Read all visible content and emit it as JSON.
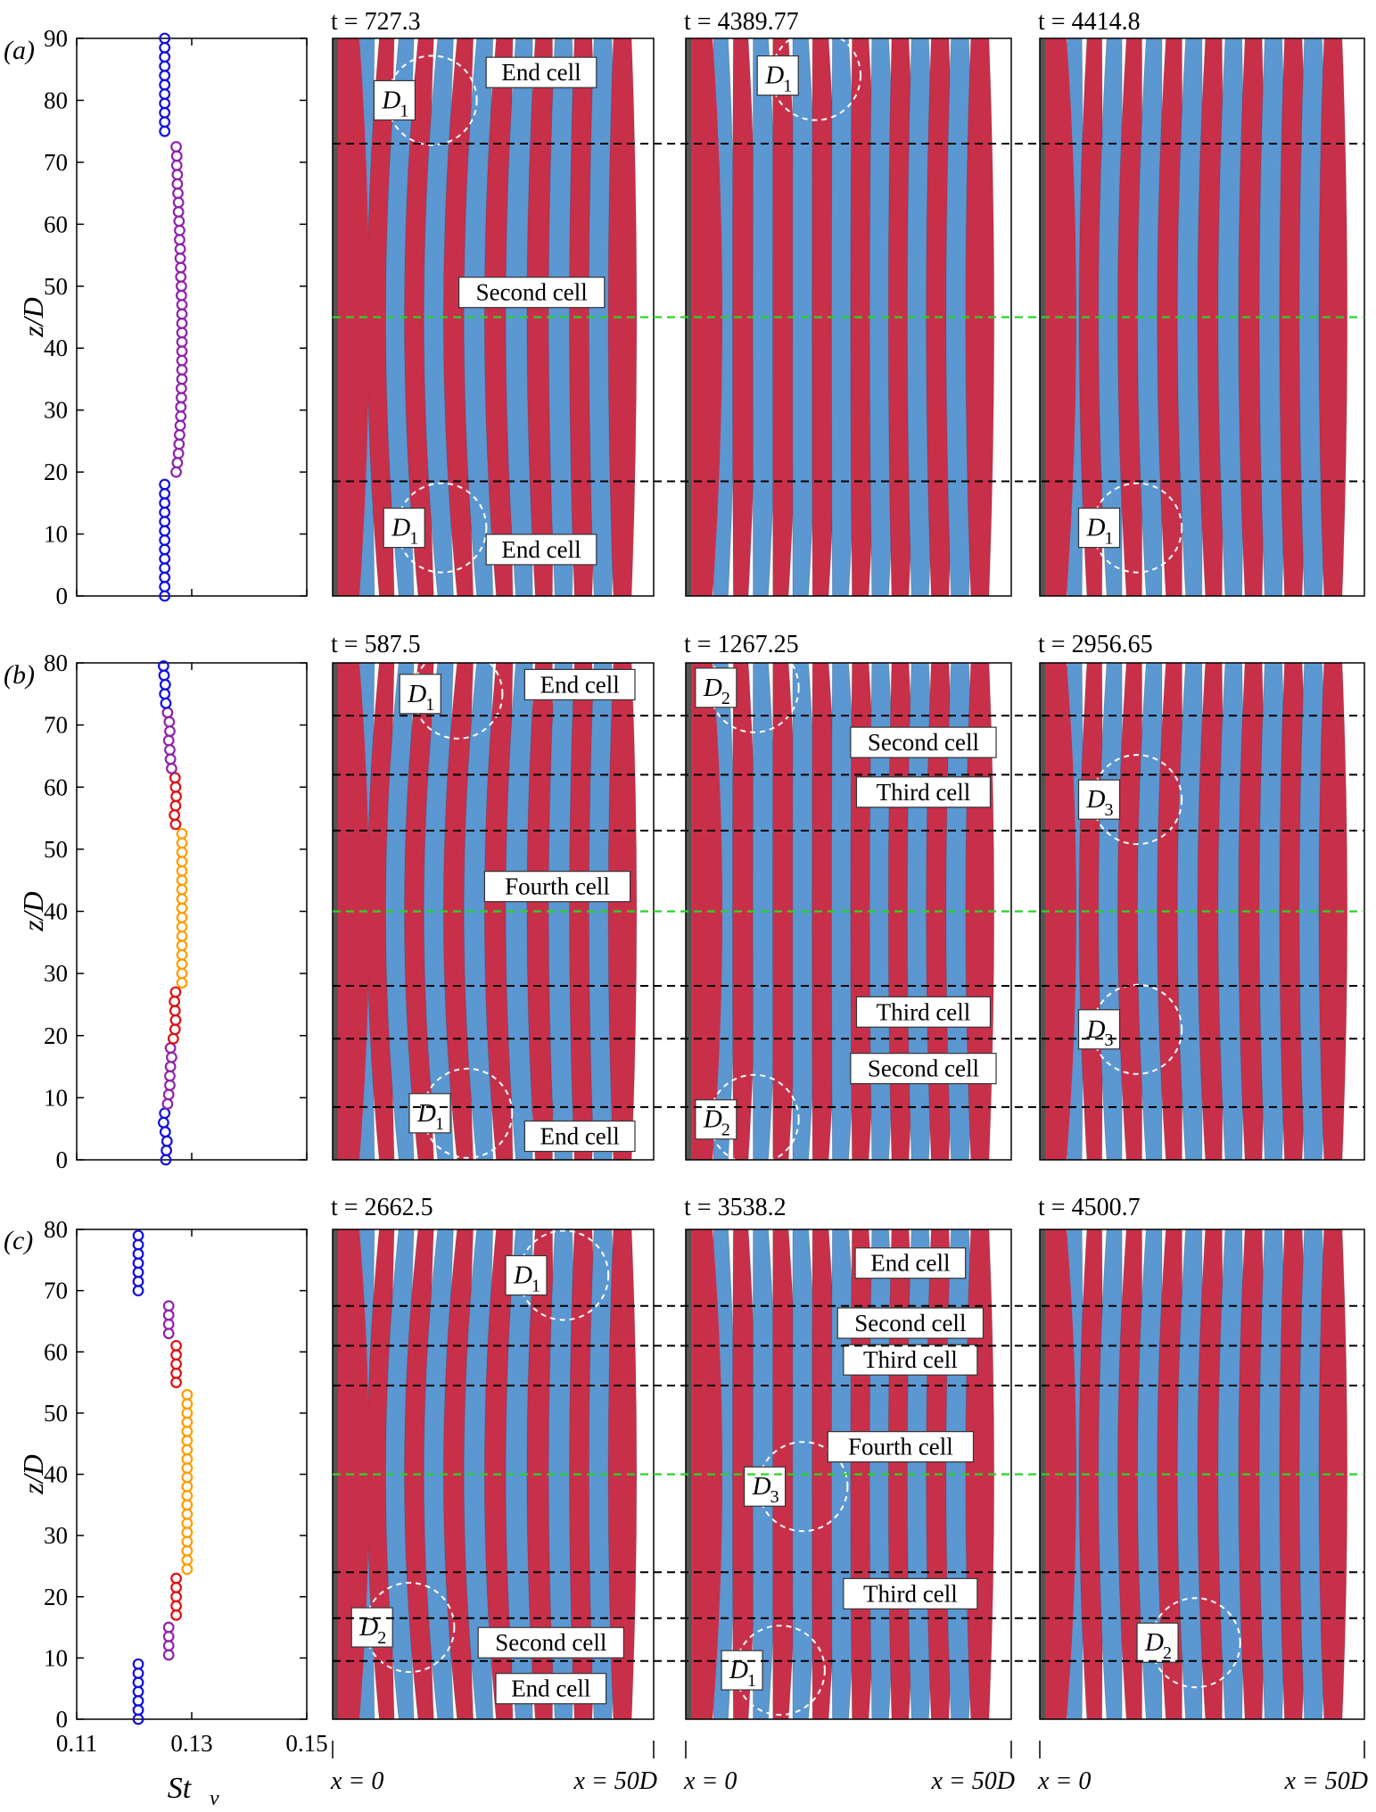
{
  "colors": {
    "red_vortex": "#c8304a",
    "blue_vortex": "#5b97d1",
    "inner_boundary": "#1f8f1f",
    "cell_boundary": "#000000",
    "st_series": [
      "#1010e0",
      "#8e24aa",
      "#e01010",
      "#ff9d00"
    ]
  },
  "common": {
    "ylabel": "z/D",
    "xlabel_st": "St",
    "xlabel_st_sub": "v",
    "x_left": "x = 0",
    "x_right": "x = 50D"
  },
  "rows": [
    {
      "label": "(a)",
      "st_chart": {
        "type": "scatter",
        "ylim": [
          0,
          90
        ],
        "yticks": [
          0,
          10,
          20,
          30,
          40,
          50,
          60,
          70,
          80,
          90
        ],
        "xlim": [
          0.11,
          0.15
        ],
        "xticks": [
          "0.11",
          "0.13",
          "0.15"
        ],
        "show_xticks": false,
        "segments": [
          {
            "color_index": 0,
            "z": [
              0,
              1.5,
              3,
              4.5,
              6,
              7.5,
              9,
              10.5,
              12,
              13.5,
              15,
              16.5,
              18
            ],
            "st": [
              0.1253,
              0.1253,
              0.1253,
              0.1253,
              0.1253,
              0.1253,
              0.1253,
              0.1253,
              0.1253,
              0.1253,
              0.1253,
              0.1253,
              0.1253
            ]
          },
          {
            "color_index": 1,
            "z": [
              20,
              21.5,
              23,
              24.5,
              26,
              27.5,
              29,
              30.5,
              32,
              33.5,
              35,
              36.5,
              38,
              39.5,
              41,
              42.5,
              44,
              45.5,
              47,
              48.5,
              50,
              51.5,
              53,
              54.5,
              56,
              57.5,
              59,
              60.5,
              62,
              63.5,
              65,
              66.5,
              68,
              69.5,
              71,
              72.5
            ],
            "st": [
              0.1273,
              0.1275,
              0.1277,
              0.1278,
              0.1279,
              0.128,
              0.1281,
              0.1281,
              0.1282,
              0.1282,
              0.1283,
              0.1283,
              0.1283,
              0.1283,
              0.1283,
              0.1283,
              0.1283,
              0.1283,
              0.1283,
              0.1282,
              0.1282,
              0.1281,
              0.1281,
              0.128,
              0.128,
              0.1279,
              0.1279,
              0.1278,
              0.1277,
              0.1277,
              0.1276,
              0.1275,
              0.1275,
              0.1274,
              0.1274,
              0.1273
            ]
          },
          {
            "color_index": 0,
            "z": [
              75,
              76.5,
              78,
              79.5,
              81,
              82.5,
              84,
              85.5,
              87,
              88.5,
              90
            ],
            "st": [
              0.1253,
              0.1253,
              0.1253,
              0.1253,
              0.1253,
              0.1253,
              0.1253,
              0.1253,
              0.1253,
              0.1253,
              0.1253
            ]
          }
        ]
      },
      "panels": [
        {
          "time": "t = 727.3",
          "labels": [
            {
              "text": "End cell",
              "x": 0.65,
              "z": 84.5
            },
            {
              "text": "Second cell",
              "x": 0.62,
              "z": 49
            },
            {
              "text": "End cell",
              "x": 0.65,
              "z": 7.5
            }
          ],
          "dlabels": [
            {
              "main": "D",
              "sub": "1",
              "x": 0.19,
              "z": 80
            },
            {
              "main": "D",
              "sub": "1",
              "x": 0.22,
              "z": 11
            }
          ]
        },
        {
          "time": "t = 4389.77",
          "labels": [],
          "dlabels": [
            {
              "main": "D",
              "sub": "1",
              "x": 0.28,
              "z": 84
            }
          ]
        },
        {
          "time": "t = 4414.8",
          "labels": [],
          "dlabels": [
            {
              "main": "D",
              "sub": "1",
              "x": 0.18,
              "z": 11
            }
          ]
        }
      ]
    },
    {
      "label": "(b)",
      "st_chart": {
        "type": "scatter",
        "ylim": [
          0,
          80
        ],
        "yticks": [
          0,
          10,
          20,
          30,
          40,
          50,
          60,
          70,
          80
        ],
        "xlim": [
          0.11,
          0.15
        ],
        "xticks": [
          "0.11",
          "0.13",
          "0.15"
        ],
        "show_xticks": false,
        "segments": [
          {
            "color_index": 0,
            "z": [
              0,
              1.5,
              3,
              4.5,
              6,
              7.5
            ],
            "st": [
              0.1255,
              0.1256,
              0.1257,
              0.1254,
              0.1251,
              0.1253
            ]
          },
          {
            "color_index": 1,
            "z": [
              9,
              10.5,
              12,
              13.5,
              15,
              16.5,
              18
            ],
            "st": [
              0.1258,
              0.126,
              0.1262,
              0.1262,
              0.1263,
              0.1265,
              0.1263
            ]
          },
          {
            "color_index": 2,
            "z": [
              19.5,
              21,
              22.5,
              24,
              25.5,
              27
            ],
            "st": [
              0.1268,
              0.1271,
              0.1272,
              0.1271,
              0.127,
              0.1272
            ]
          },
          {
            "color_index": 3,
            "z": [
              28.5,
              30,
              31.5,
              33,
              34.5,
              36,
              37.5,
              39,
              40.5,
              42,
              43.5,
              45,
              46.5,
              48,
              49.5,
              51,
              52.5
            ],
            "st": [
              0.1283,
              0.1283,
              0.1283,
              0.1283,
              0.1283,
              0.1283,
              0.1283,
              0.1283,
              0.1283,
              0.1283,
              0.1283,
              0.1283,
              0.1283,
              0.1283,
              0.1283,
              0.1283,
              0.1283
            ]
          },
          {
            "color_index": 2,
            "z": [
              54,
              55.5,
              57,
              58.5,
              60,
              61.5
            ],
            "st": [
              0.1272,
              0.127,
              0.1272,
              0.1273,
              0.1272,
              0.1271
            ]
          },
          {
            "color_index": 1,
            "z": [
              63,
              64.5,
              66,
              67.5,
              69,
              70.5,
              72
            ],
            "st": [
              0.1265,
              0.1263,
              0.1262,
              0.126,
              0.1262,
              0.1261,
              0.1258
            ]
          },
          {
            "color_index": 0,
            "z": [
              73.5,
              75,
              76.5,
              78,
              79.5
            ],
            "st": [
              0.1255,
              0.1253,
              0.1254,
              0.1252,
              0.1251
            ]
          }
        ]
      },
      "panels": [
        {
          "time": "t = 587.5",
          "labels": [
            {
              "text": "End cell",
              "x": 0.77,
              "z": 76.5
            },
            {
              "text": "Fourth cell",
              "x": 0.7,
              "z": 44
            },
            {
              "text": "End cell",
              "x": 0.77,
              "z": 3.8
            }
          ],
          "dlabels": [
            {
              "main": "D",
              "sub": "1",
              "x": 0.27,
              "z": 75
            },
            {
              "main": "D",
              "sub": "1",
              "x": 0.3,
              "z": 7.5
            }
          ]
        },
        {
          "time": "t = 1267.25",
          "labels": [
            {
              "text": "Second cell",
              "x": 0.73,
              "z": 67.2
            },
            {
              "text": "Third cell",
              "x": 0.73,
              "z": 59.2
            },
            {
              "text": "Third cell",
              "x": 0.73,
              "z": 23.8
            },
            {
              "text": "Second cell",
              "x": 0.73,
              "z": 14.7
            }
          ],
          "dlabels": [
            {
              "main": "D",
              "sub": "2",
              "x": 0.09,
              "z": 76
            },
            {
              "main": "D",
              "sub": "2",
              "x": 0.09,
              "z": 6.5
            }
          ]
        },
        {
          "time": "t = 2956.65",
          "labels": [],
          "dlabels": [
            {
              "main": "D",
              "sub": "3",
              "x": 0.18,
              "z": 58
            },
            {
              "main": "D",
              "sub": "3",
              "x": 0.18,
              "z": 21
            }
          ]
        }
      ]
    },
    {
      "label": "(c)",
      "st_chart": {
        "type": "scatter",
        "ylim": [
          0,
          80
        ],
        "yticks": [
          0,
          10,
          20,
          30,
          40,
          50,
          60,
          70,
          80
        ],
        "xlim": [
          0.11,
          0.15
        ],
        "xticks": [
          "0.11",
          "0.13",
          "0.15"
        ],
        "show_xticks": true,
        "segments": [
          {
            "color_index": 0,
            "z": [
              0,
              1.5,
              3,
              4.5,
              6,
              7.5,
              9
            ],
            "st": [
              0.1207,
              0.1207,
              0.1207,
              0.1207,
              0.1207,
              0.1207,
              0.1207
            ]
          },
          {
            "color_index": 1,
            "z": [
              10.5,
              12,
              13.5,
              15
            ],
            "st": [
              0.126,
              0.126,
              0.126,
              0.126
            ]
          },
          {
            "color_index": 2,
            "z": [
              17,
              18.5,
              20,
              21.5,
              23
            ],
            "st": [
              0.1273,
              0.1273,
              0.1273,
              0.1273,
              0.1273
            ]
          },
          {
            "color_index": 3,
            "z": [
              24.5,
              26,
              27.5,
              29,
              30.5,
              32,
              33.5,
              35,
              36.5,
              38,
              39.5,
              41,
              42.5,
              44,
              45.5,
              47,
              48.5,
              50,
              51.5,
              53
            ],
            "st": [
              0.1292,
              0.1292,
              0.1292,
              0.1292,
              0.1292,
              0.1292,
              0.1292,
              0.1292,
              0.1292,
              0.1292,
              0.1292,
              0.1292,
              0.1292,
              0.1292,
              0.1292,
              0.1292,
              0.1292,
              0.1292,
              0.1292,
              0.1292
            ]
          },
          {
            "color_index": 2,
            "z": [
              55,
              56.5,
              58,
              59.5,
              61
            ],
            "st": [
              0.1273,
              0.1273,
              0.1273,
              0.1273,
              0.1273
            ]
          },
          {
            "color_index": 1,
            "z": [
              63,
              64.5,
              66,
              67.5
            ],
            "st": [
              0.126,
              0.126,
              0.126,
              0.126
            ]
          },
          {
            "color_index": 0,
            "z": [
              70,
              71.5,
              73,
              74.5,
              76,
              77.5,
              79
            ],
            "st": [
              0.1207,
              0.1207,
              0.1207,
              0.1207,
              0.1207,
              0.1207,
              0.1207
            ]
          }
        ]
      },
      "panels": [
        {
          "time": "t = 2662.5",
          "labels": [
            {
              "text": "Second cell",
              "x": 0.68,
              "z": 12.5
            },
            {
              "text": "End cell",
              "x": 0.68,
              "z": 5
            }
          ],
          "dlabels": [
            {
              "main": "D",
              "sub": "1",
              "x": 0.6,
              "z": 72.5
            },
            {
              "main": "D",
              "sub": "2",
              "x": 0.12,
              "z": 15
            }
          ]
        },
        {
          "time": "t = 3538.2",
          "labels": [
            {
              "text": "End cell",
              "x": 0.69,
              "z": 74.5
            },
            {
              "text": "Second cell",
              "x": 0.69,
              "z": 64.7
            },
            {
              "text": "Third cell",
              "x": 0.69,
              "z": 58.7
            },
            {
              "text": "Fourth cell",
              "x": 0.66,
              "z": 44.5
            },
            {
              "text": "Third cell",
              "x": 0.69,
              "z": 20.5
            }
          ],
          "dlabels": [
            {
              "main": "D",
              "sub": "3",
              "x": 0.24,
              "z": 38
            },
            {
              "main": "D",
              "sub": "1",
              "x": 0.17,
              "z": 8
            }
          ]
        },
        {
          "time": "t = 4500.7",
          "labels": [],
          "dlabels": [
            {
              "main": "D",
              "sub": "2",
              "x": 0.36,
              "z": 12.5
            }
          ]
        }
      ]
    }
  ]
}
